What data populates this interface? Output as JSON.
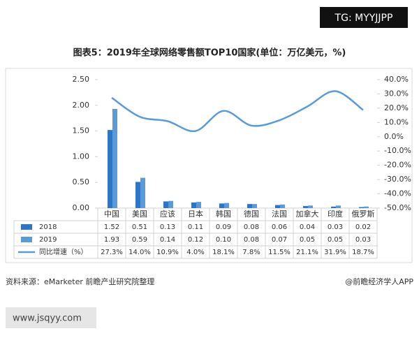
{
  "watermark": "TG: MYYJJPP",
  "chart_data": {
    "type": "bar",
    "title": "图表5：2019年全球网络零售额TOP10国家(单位：万亿美元，%)",
    "categories": [
      "中国",
      "美国",
      "应该",
      "日本",
      "韩国",
      "德国",
      "法国",
      "加拿大",
      "印度",
      "俄罗斯"
    ],
    "series": [
      {
        "name": "2018",
        "color": "#2f75c5",
        "values": [
          1.52,
          0.51,
          0.13,
          0.11,
          0.09,
          0.08,
          0.06,
          0.04,
          0.03,
          0.02
        ]
      },
      {
        "name": "2019",
        "color": "#5b9bd5",
        "values": [
          1.93,
          0.59,
          0.14,
          0.12,
          0.1,
          0.08,
          0.07,
          0.05,
          0.05,
          0.03
        ],
        "value_labels": [
          "1.93",
          "0.59",
          "0.14",
          "0.12",
          "0.10",
          "0.08",
          "0.07",
          "0.05",
          "0.05",
          "0.03"
        ]
      },
      {
        "name": "同比增速（%）",
        "type": "line",
        "axis": "y2",
        "color": "#5b9bd5",
        "values": [
          27.3,
          14.0,
          10.9,
          4.0,
          18.1,
          7.8,
          11.5,
          21.1,
          31.9,
          18.7
        ],
        "value_labels": [
          "27.3%",
          "14.0%",
          "10.9%",
          "4.0%",
          "18.1%",
          "7.8%",
          "11.5%",
          "21.1%",
          "31.9%",
          "18.7%"
        ]
      }
    ],
    "ylim": [
      0,
      2.5
    ],
    "yticks": [
      {
        "value": 0,
        "label": "0.00"
      },
      {
        "value": 0.5,
        "label": "0.50"
      },
      {
        "value": 1,
        "label": "1.00"
      },
      {
        "value": 1.5,
        "label": "1.50"
      },
      {
        "value": 2,
        "label": "2.00"
      },
      {
        "value": 2.5,
        "label": "2.50"
      }
    ],
    "y2lim": [
      -50,
      40
    ],
    "y2ticks": [
      {
        "value": -50,
        "label": "-50.0%"
      },
      {
        "value": -40,
        "label": "-40.0%"
      },
      {
        "value": -30,
        "label": "-30.0%"
      },
      {
        "value": -20,
        "label": "-20.0%"
      },
      {
        "value": -10,
        "label": "-10.0%"
      },
      {
        "value": 0,
        "label": "0.0%"
      },
      {
        "value": 10,
        "label": "10.0%"
      },
      {
        "value": 20,
        "label": "20.0%"
      },
      {
        "value": 30,
        "label": "30.0%"
      },
      {
        "value": 40,
        "label": "40.0%"
      }
    ],
    "source": "资料来源：eMarketer 前瞻产业研究院整理",
    "credit": "@前瞻经济学人APP"
  },
  "footer": "www.jsqyy.com"
}
